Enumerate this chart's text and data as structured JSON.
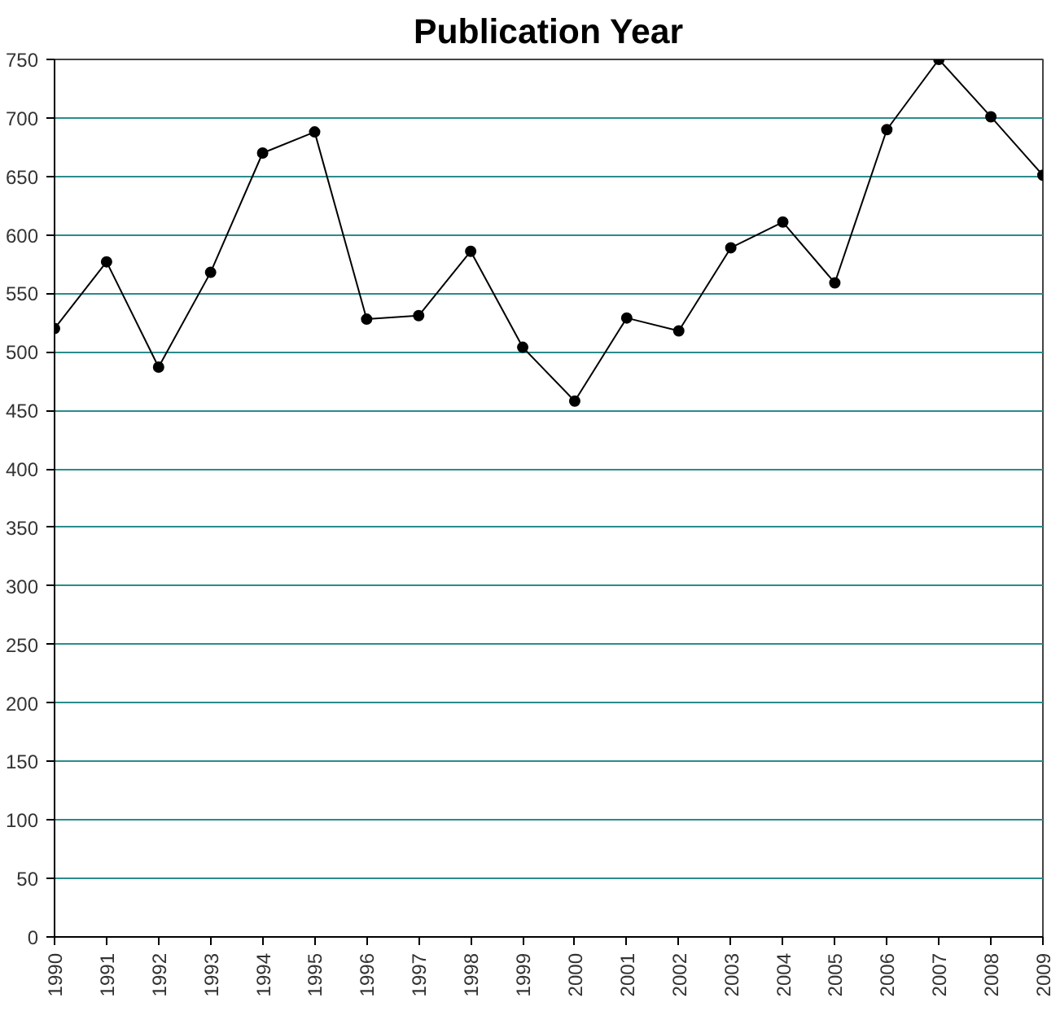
{
  "chart_data": {
    "type": "line",
    "title": "Publication Year",
    "x": [
      1990,
      1991,
      1992,
      1993,
      1994,
      1995,
      1996,
      1997,
      1998,
      1999,
      2000,
      2001,
      2002,
      2003,
      2004,
      2005,
      2006,
      2007,
      2008,
      2009
    ],
    "series": [
      {
        "color": "#000000",
        "values": [
          520,
          577,
          487,
          568,
          670,
          688,
          528,
          531,
          586,
          504,
          458,
          529,
          518,
          589,
          611,
          559,
          690,
          750,
          701,
          651
        ]
      }
    ],
    "xlim": [
      1990,
      2009
    ],
    "xticks": [
      1990,
      1991,
      1992,
      1993,
      1994,
      1995,
      1996,
      1997,
      1998,
      1999,
      2000,
      2001,
      2002,
      2003,
      2004,
      2005,
      2006,
      2007,
      2008,
      2009
    ],
    "ylim": [
      0,
      750
    ],
    "yticks": [
      0,
      50,
      100,
      150,
      200,
      250,
      300,
      350,
      400,
      450,
      500,
      550,
      600,
      650,
      700,
      750
    ],
    "grid": "y",
    "marker": "circle",
    "line_style": "solid"
  }
}
